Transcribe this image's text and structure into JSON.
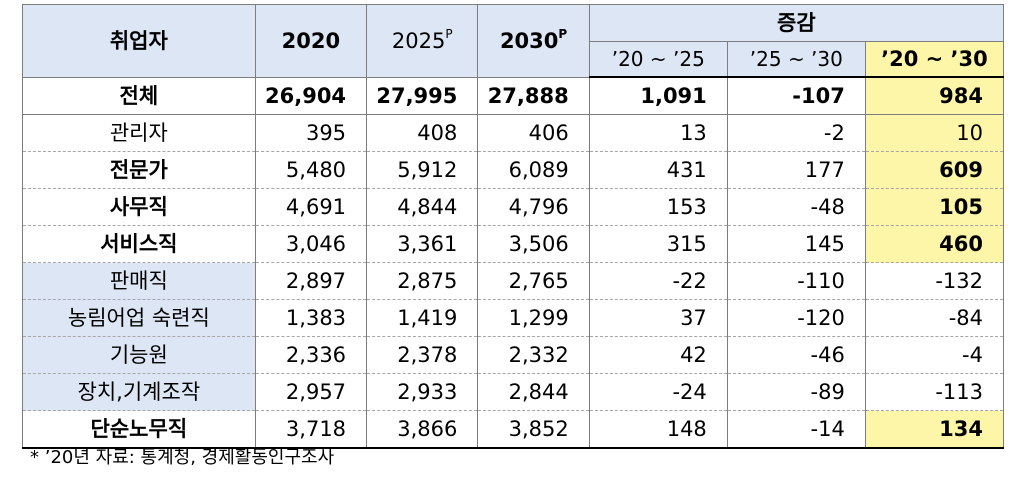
{
  "table": {
    "header": {
      "col_name": "취업자",
      "col_2020": "2020",
      "col_2025": "2025",
      "col_2025_sup": "P",
      "col_2030": "2030",
      "col_2030_sup": "P",
      "change": "증감",
      "change_20_25": "’20 ~ ’25",
      "change_25_30": "’25 ~ ’30",
      "change_20_30": "’20 ~ ’30"
    },
    "rows": [
      {
        "name": "전체",
        "y2020": "26,904",
        "y2025": "27,995",
        "y2030": "27,888",
        "c2025": "1,091",
        "c2530": "-107",
        "c2030": "984"
      },
      {
        "name": "관리자",
        "y2020": "395",
        "y2025": "408",
        "y2030": "406",
        "c2025": "13",
        "c2530": "-2",
        "c2030": "10"
      },
      {
        "name": "전문가",
        "y2020": "5,480",
        "y2025": "5,912",
        "y2030": "6,089",
        "c2025": "431",
        "c2530": "177",
        "c2030": "609"
      },
      {
        "name": "사무직",
        "y2020": "4,691",
        "y2025": "4,844",
        "y2030": "4,796",
        "c2025": "153",
        "c2530": "-48",
        "c2030": "105"
      },
      {
        "name": "서비스직",
        "y2020": "3,046",
        "y2025": "3,361",
        "y2030": "3,506",
        "c2025": "315",
        "c2530": "145",
        "c2030": "460"
      },
      {
        "name": "판매직",
        "y2020": "2,897",
        "y2025": "2,875",
        "y2030": "2,765",
        "c2025": "-22",
        "c2530": "-110",
        "c2030": "-132"
      },
      {
        "name": "농림어업 숙련직",
        "y2020": "1,383",
        "y2025": "1,419",
        "y2030": "1,299",
        "c2025": "37",
        "c2530": "-120",
        "c2030": "-84"
      },
      {
        "name": "기능원",
        "y2020": "2,336",
        "y2025": "2,378",
        "y2030": "2,332",
        "c2025": "42",
        "c2530": "-46",
        "c2030": "-4"
      },
      {
        "name": "장치,기계조작",
        "y2020": "2,957",
        "y2025": "2,933",
        "y2030": "2,844",
        "c2025": "-24",
        "c2530": "-89",
        "c2030": "-113"
      },
      {
        "name": "단순노무직",
        "y2020": "3,718",
        "y2025": "3,866",
        "y2030": "3,852",
        "c2025": "148",
        "c2530": "-14",
        "c2030": "134"
      }
    ]
  },
  "footnote": "*  ’20년  자료:  통계청,  경제활동인구조사",
  "colors": {
    "header_bg": "#dde6f4",
    "highlight_bg": "#fdf6a8",
    "border": "#7d7d7d"
  }
}
